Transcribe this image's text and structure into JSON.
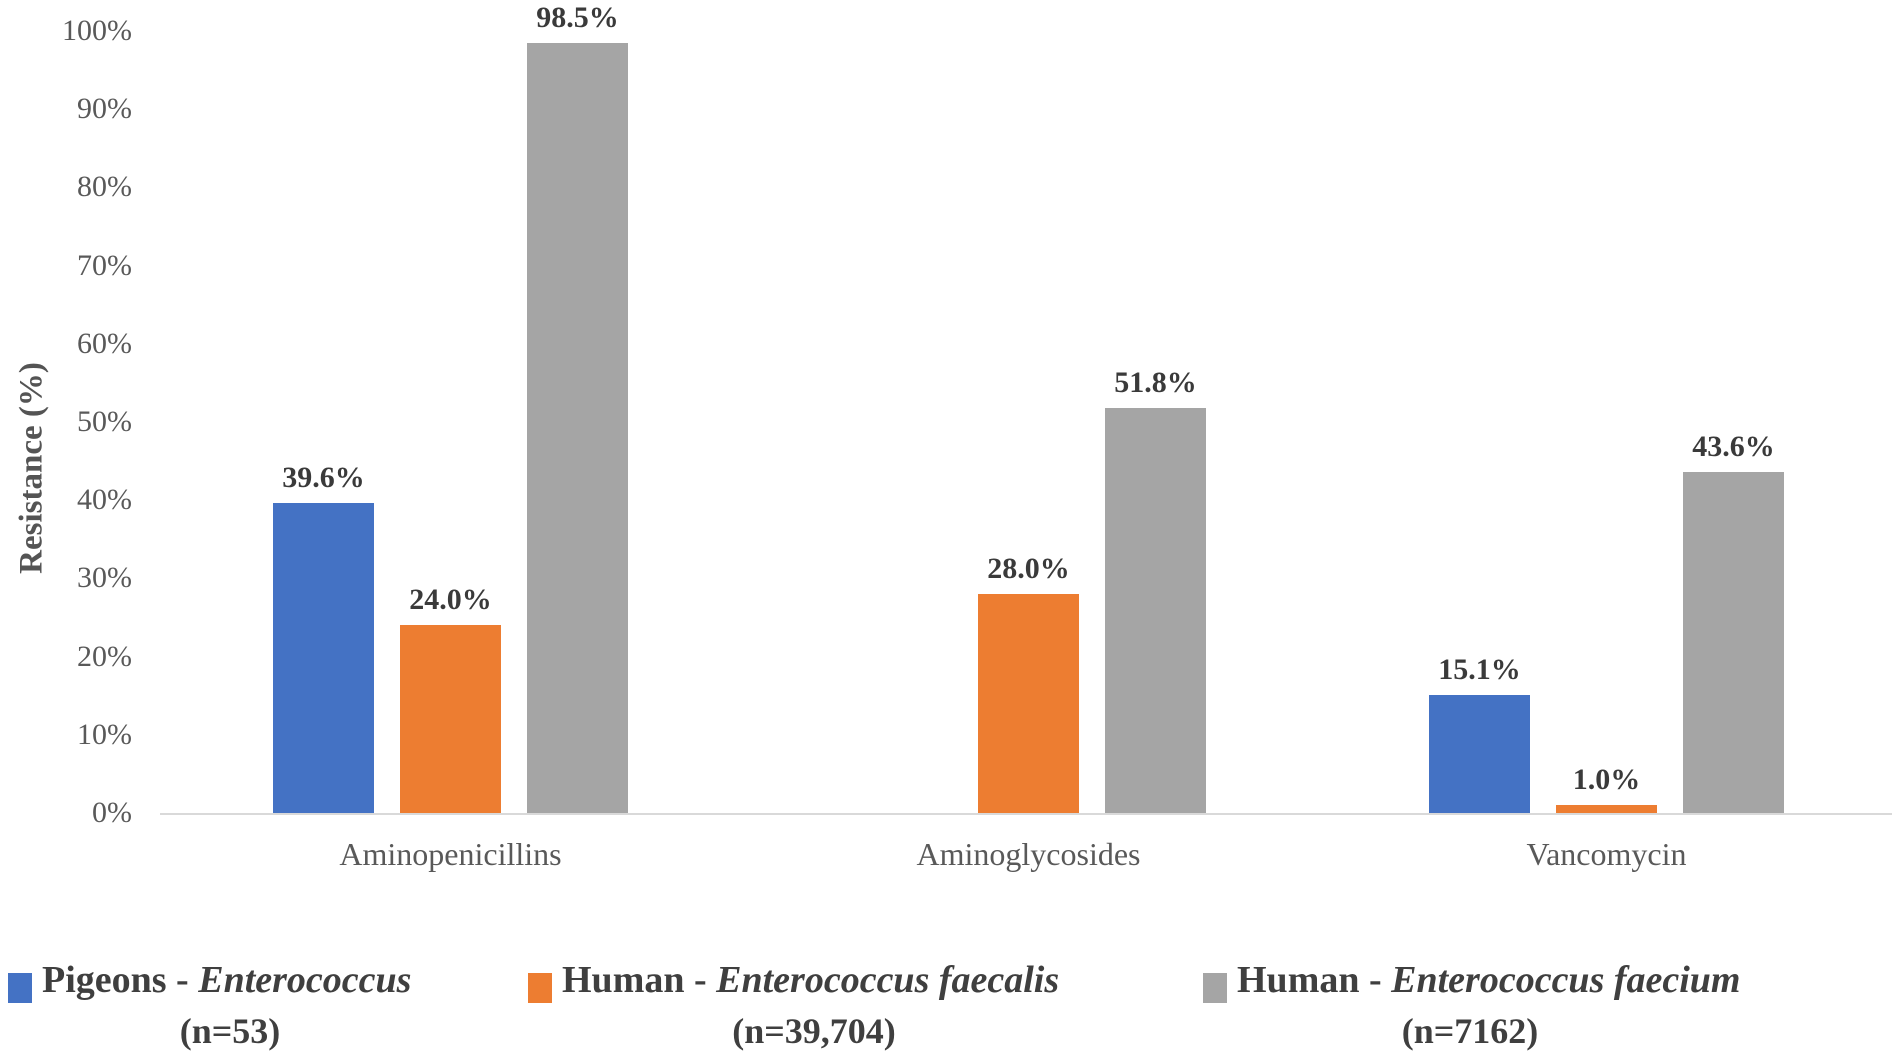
{
  "y_axis": {
    "title": "Resistance (%)",
    "ticks": [
      {
        "label": "0%",
        "value": 0
      },
      {
        "label": "10%",
        "value": 10
      },
      {
        "label": "20%",
        "value": 20
      },
      {
        "label": "30%",
        "value": 30
      },
      {
        "label": "40%",
        "value": 40
      },
      {
        "label": "50%",
        "value": 50
      },
      {
        "label": "60%",
        "value": 60
      },
      {
        "label": "70%",
        "value": 70
      },
      {
        "label": "80%",
        "value": 80
      },
      {
        "label": "90%",
        "value": 90
      },
      {
        "label": "100%",
        "value": 100
      }
    ]
  },
  "chart_data": {
    "type": "bar",
    "title": "",
    "xlabel": "",
    "ylabel": "Resistance (%)",
    "ylim": [
      0,
      100
    ],
    "grid": false,
    "legend_position": "bottom",
    "categories": [
      "Aminopenicillins",
      "Aminoglycosides",
      "Vancomycin"
    ],
    "series": [
      {
        "name": "Pigeons - Enterococcus (n=53)",
        "color": "#4472c4",
        "values": [
          39.6,
          null,
          15.1
        ],
        "labels": [
          "39.6%",
          null,
          "15.1%"
        ]
      },
      {
        "name": "Human - Enterococcus faecalis (n=39,704)",
        "color": "#ed7d31",
        "values": [
          24.0,
          28.0,
          1.0
        ],
        "labels": [
          "24.0%",
          "28.0%",
          "1.0%"
        ]
      },
      {
        "name": "Human - Enterococcus faecium (n=7162)",
        "color": "#a5a5a5",
        "values": [
          98.5,
          51.8,
          43.6
        ],
        "labels": [
          "98.5%",
          "51.8%",
          "43.6%"
        ]
      }
    ]
  },
  "legend": {
    "items": [
      {
        "host": "Pigeons -",
        "species": "Enterococcus",
        "n": "(n=53)",
        "color": "#4472c4"
      },
      {
        "host": "Human -",
        "species": "Enterococcus faecalis",
        "n": "(n=39,704)",
        "color": "#ed7d31"
      },
      {
        "host": "Human -",
        "species": "Enterococcus faecium",
        "n": "(n=7162)",
        "color": "#a5a5a5"
      }
    ]
  },
  "colors": {
    "axis_line": "#d9d9d9",
    "tick_text": "#595959",
    "category_text": "#595959",
    "data_label_text": "#3a3a3a",
    "legend_text": "#3f3f3f"
  }
}
